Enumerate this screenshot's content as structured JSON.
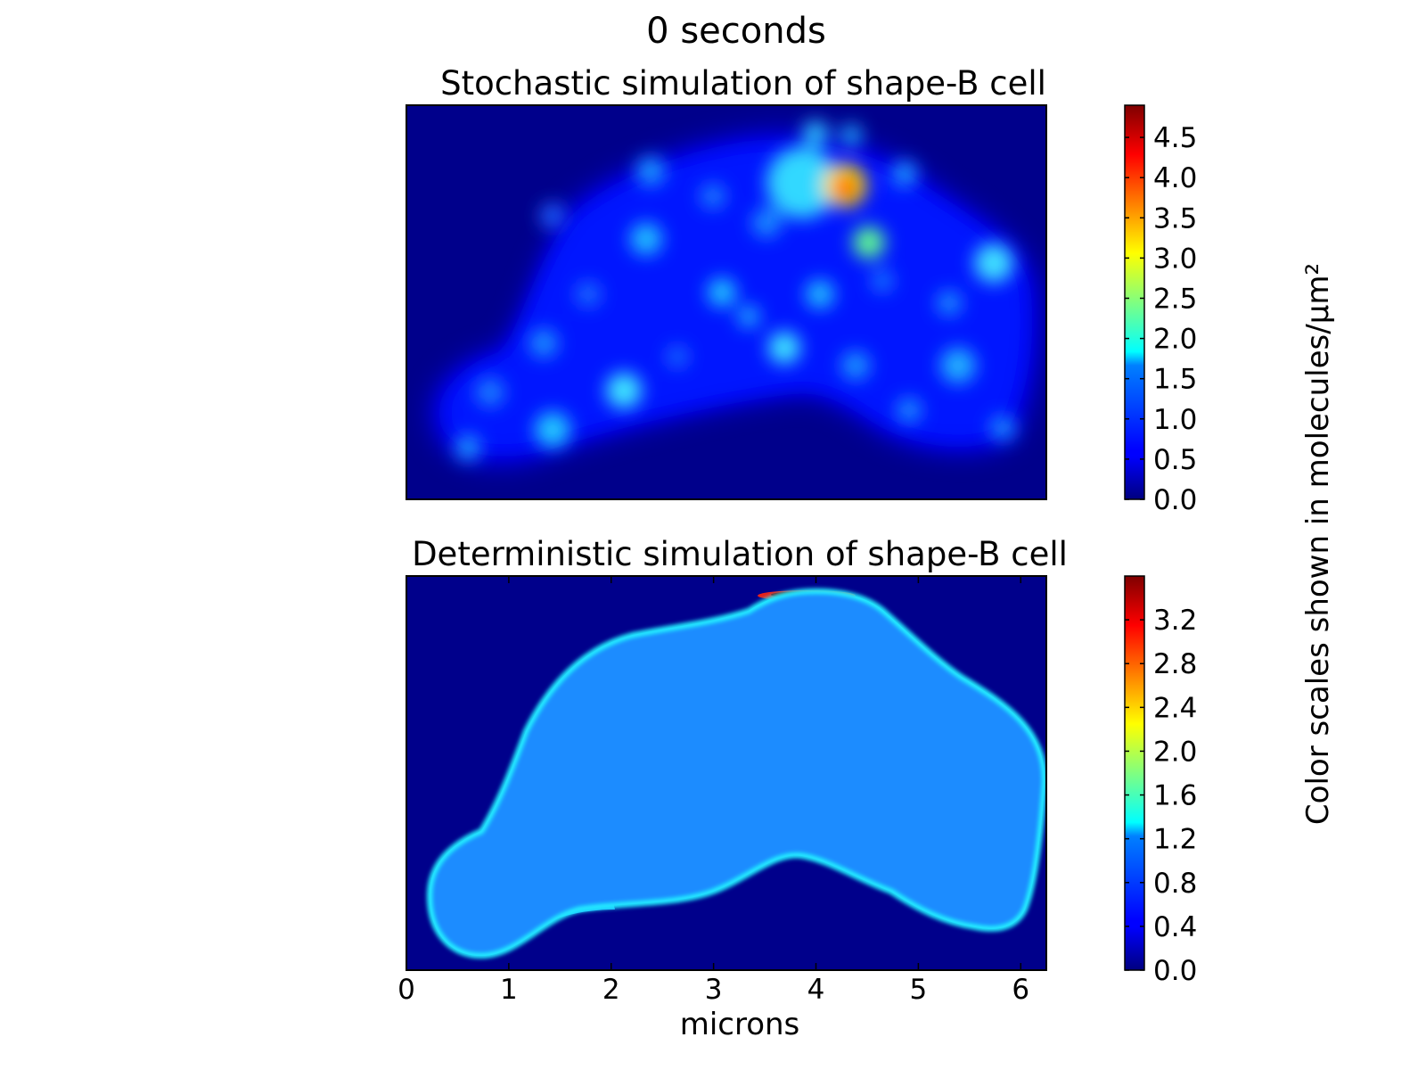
{
  "figure": {
    "title": "0 seconds",
    "side_label": "Color scales shown in molecules/μm²"
  },
  "chart_data": [
    {
      "type": "heatmap",
      "title": "Stochastic simulation of shape-B cell",
      "xlabel": "",
      "ylabel": "",
      "colormap": "jet",
      "colorbar": {
        "range": [
          0,
          4.9
        ],
        "ticks": [
          "0.0",
          "0.5",
          "1.0",
          "1.5",
          "2.0",
          "2.5",
          "3.0",
          "3.5",
          "4.0",
          "4.5"
        ]
      },
      "peak_value": 4.9
    },
    {
      "type": "heatmap",
      "title": "Deterministic simulation of shape-B cell",
      "xlabel": "microns",
      "xlim": [
        0,
        6.25
      ],
      "xticks": [
        "0",
        "1",
        "2",
        "3",
        "4",
        "5",
        "6"
      ],
      "ylabel": "",
      "colormap": "jet",
      "colorbar": {
        "range": [
          0,
          3.6
        ],
        "ticks": [
          "0.0",
          "0.4",
          "0.8",
          "1.2",
          "1.6",
          "2.0",
          "2.4",
          "2.8",
          "3.2"
        ]
      },
      "peak_value": 3.6
    }
  ]
}
